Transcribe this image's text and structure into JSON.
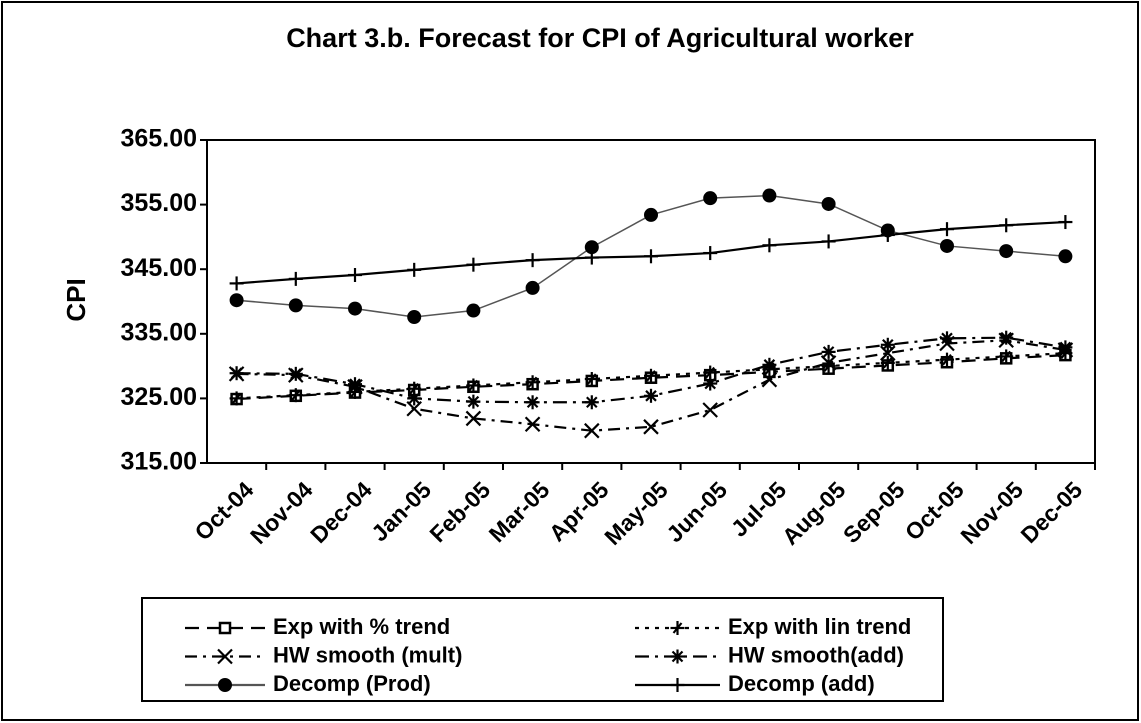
{
  "chart_data": {
    "type": "line",
    "title": "Chart 3.b. Forecast for CPI of Agricultural worker",
    "y_label": "CPI",
    "categories": [
      "Oct-04",
      "Nov-04",
      "Dec-04",
      "Jan-05",
      "Feb-05",
      "Mar-05",
      "Apr-05",
      "May-05",
      "Jun-05",
      "Jul-05",
      "Aug-05",
      "Sep-05",
      "Oct-05",
      "Nov-05",
      "Dec-05"
    ],
    "ylim": [
      315,
      365
    ],
    "yticks": [
      {
        "value": 315,
        "label": "315.00"
      },
      {
        "value": 325,
        "label": "325.00"
      },
      {
        "value": 335,
        "label": "335.00"
      },
      {
        "value": 345,
        "label": "345.00"
      },
      {
        "value": 355,
        "label": "355.00"
      },
      {
        "value": 365,
        "label": "365.00"
      }
    ],
    "grid": false,
    "legend": "bottom",
    "series": [
      {
        "name": "Exp with % trend",
        "color": "#000000",
        "dash": "14 8",
        "marker": "square",
        "values": [
          324.9,
          325.4,
          325.9,
          326.3,
          326.8,
          327.2,
          327.7,
          328.2,
          328.6,
          329.1,
          329.6,
          330.1,
          330.6,
          331.2,
          331.7
        ]
      },
      {
        "name": "Exp with lin trend",
        "color": "#000000",
        "dash": "4 6",
        "marker": "star",
        "values": [
          325.0,
          325.5,
          326.0,
          326.5,
          327.0,
          327.5,
          328.0,
          328.5,
          329.0,
          329.5,
          330.0,
          330.5,
          331.0,
          331.5,
          332.0
        ]
      },
      {
        "name": "HW smooth (mult)",
        "color": "#000000",
        "dash": "12 6 3 6",
        "marker": "x",
        "values": [
          328.8,
          328.6,
          326.8,
          323.4,
          321.9,
          321.0,
          320.0,
          320.6,
          323.2,
          327.9,
          330.5,
          332.0,
          333.5,
          334.0,
          332.5
        ]
      },
      {
        "name": "HW smooth(add)",
        "color": "#000000",
        "dash": "14 6 3 6",
        "marker": "asterisk",
        "values": [
          328.9,
          328.8,
          327.2,
          325.0,
          324.5,
          324.4,
          324.4,
          325.4,
          327.3,
          330.2,
          332.2,
          333.3,
          334.3,
          334.4,
          332.9
        ]
      },
      {
        "name": "Decomp (Prod)",
        "color": "#555555",
        "dash": "none",
        "marker": "circle",
        "values": [
          340.2,
          339.4,
          338.9,
          337.6,
          338.6,
          342.1,
          348.4,
          353.4,
          356.0,
          356.4,
          355.1,
          351.0,
          348.6,
          347.8,
          347.0
        ]
      },
      {
        "name": "Decomp (add)",
        "color": "#000000",
        "dash": "none",
        "marker": "plus",
        "values": [
          342.8,
          343.5,
          344.1,
          344.9,
          345.7,
          346.4,
          346.8,
          347.0,
          347.5,
          348.7,
          349.3,
          350.3,
          351.2,
          351.8,
          352.3
        ]
      }
    ]
  }
}
